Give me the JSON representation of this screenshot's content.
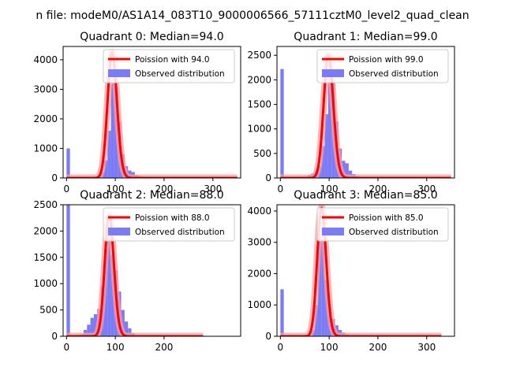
{
  "figure": {
    "suptitle": "n file: modeM0/AS1A14_083T10_9000006566_57111cztM0_level2_quad_clean"
  },
  "colors": {
    "bars": "#7b7bf7",
    "fit_line": "#ff0000",
    "fit_band": "#f4a0a0",
    "axis": "#000000"
  },
  "chart_data": [
    {
      "type": "bar",
      "title": "Quadrant 0: Median=94.0",
      "xlim": [
        -7,
        357
      ],
      "ylim": [
        0,
        4450
      ],
      "xticks": [
        0,
        100,
        200,
        300
      ],
      "yticks": [
        0,
        1000,
        2000,
        3000,
        4000
      ],
      "legend": {
        "placement": "upper-right",
        "entries": [
          "Poission with 94.0",
          "Observed distribution"
        ]
      },
      "bin_width": 7,
      "histogram": [
        {
          "x": 0,
          "y": 1000
        },
        {
          "x": 63,
          "y": 80
        },
        {
          "x": 70,
          "y": 200
        },
        {
          "x": 77,
          "y": 600
        },
        {
          "x": 84,
          "y": 1600
        },
        {
          "x": 91,
          "y": 3200
        },
        {
          "x": 98,
          "y": 3100
        },
        {
          "x": 105,
          "y": 1900
        },
        {
          "x": 112,
          "y": 800
        },
        {
          "x": 119,
          "y": 400
        },
        {
          "x": 126,
          "y": 250
        },
        {
          "x": 133,
          "y": 200
        },
        {
          "x": 140,
          "y": 100
        },
        {
          "x": 147,
          "y": 60
        },
        {
          "x": 154,
          "y": 30
        }
      ],
      "poisson": {
        "mean": 94.0,
        "x_range": [
          0,
          350
        ],
        "peak": 4250
      }
    },
    {
      "type": "bar",
      "title": "Quadrant 1: Median=99.0",
      "xlim": [
        -7,
        357
      ],
      "ylim": [
        0,
        2680
      ],
      "xticks": [
        0,
        100,
        200,
        300
      ],
      "yticks": [
        0,
        500,
        1000,
        1500,
        2000,
        2500
      ],
      "legend": {
        "placement": "upper-right",
        "entries": [
          "Poission with 99.0",
          "Observed distribution"
        ]
      },
      "bin_width": 7,
      "histogram": [
        {
          "x": 0,
          "y": 2220
        },
        {
          "x": 56,
          "y": 60
        },
        {
          "x": 63,
          "y": 90
        },
        {
          "x": 70,
          "y": 150
        },
        {
          "x": 77,
          "y": 250
        },
        {
          "x": 84,
          "y": 650
        },
        {
          "x": 91,
          "y": 1300
        },
        {
          "x": 98,
          "y": 2050
        },
        {
          "x": 105,
          "y": 2000
        },
        {
          "x": 112,
          "y": 1150
        },
        {
          "x": 119,
          "y": 600
        },
        {
          "x": 126,
          "y": 350
        },
        {
          "x": 133,
          "y": 300
        },
        {
          "x": 140,
          "y": 150
        },
        {
          "x": 147,
          "y": 80
        },
        {
          "x": 154,
          "y": 40
        }
      ],
      "poisson": {
        "mean": 99.0,
        "x_range": [
          0,
          350
        ],
        "peak": 2500
      }
    },
    {
      "type": "bar",
      "title": "Quadrant 2: Median=88.0",
      "xlim": [
        -7,
        357
      ],
      "ylim": [
        0,
        2500
      ],
      "xticks": [
        0,
        100,
        200
      ],
      "yticks": [
        0,
        500,
        1000,
        1500,
        2000,
        2500
      ],
      "legend": {
        "placement": "upper-right",
        "entries": [
          "Poission with 88.0",
          "Observed distribution"
        ]
      },
      "bin_width": 7,
      "histogram": [
        {
          "x": 0,
          "y": 2500
        },
        {
          "x": 28,
          "y": 40
        },
        {
          "x": 35,
          "y": 120
        },
        {
          "x": 42,
          "y": 220
        },
        {
          "x": 49,
          "y": 350
        },
        {
          "x": 56,
          "y": 420
        },
        {
          "x": 63,
          "y": 520
        },
        {
          "x": 70,
          "y": 950
        },
        {
          "x": 77,
          "y": 1650
        },
        {
          "x": 84,
          "y": 2100
        },
        {
          "x": 91,
          "y": 1550
        },
        {
          "x": 98,
          "y": 1250
        },
        {
          "x": 105,
          "y": 850
        },
        {
          "x": 112,
          "y": 500
        },
        {
          "x": 119,
          "y": 280
        },
        {
          "x": 126,
          "y": 150
        },
        {
          "x": 133,
          "y": 60
        }
      ],
      "poisson": {
        "mean": 88.0,
        "x_range": [
          0,
          280
        ],
        "peak": 2300
      }
    },
    {
      "type": "bar",
      "title": "Quadrant 3: Median=85.0",
      "xlim": [
        -7,
        357
      ],
      "ylim": [
        0,
        4200
      ],
      "xticks": [
        0,
        100,
        200,
        300
      ],
      "yticks": [
        0,
        1000,
        2000,
        3000,
        4000
      ],
      "legend": {
        "placement": "upper-right",
        "entries": [
          "Poission with 85.0",
          "Observed distribution"
        ]
      },
      "bin_width": 7,
      "histogram": [
        {
          "x": 0,
          "y": 1500
        },
        {
          "x": 56,
          "y": 60
        },
        {
          "x": 63,
          "y": 200
        },
        {
          "x": 70,
          "y": 1000
        },
        {
          "x": 77,
          "y": 3500
        },
        {
          "x": 84,
          "y": 3400
        },
        {
          "x": 91,
          "y": 1800
        },
        {
          "x": 98,
          "y": 900
        },
        {
          "x": 105,
          "y": 550
        },
        {
          "x": 112,
          "y": 350
        },
        {
          "x": 119,
          "y": 200
        },
        {
          "x": 126,
          "y": 120
        },
        {
          "x": 133,
          "y": 60
        }
      ],
      "poisson": {
        "mean": 85.0,
        "x_range": [
          0,
          330
        ],
        "peak": 4100
      }
    }
  ]
}
